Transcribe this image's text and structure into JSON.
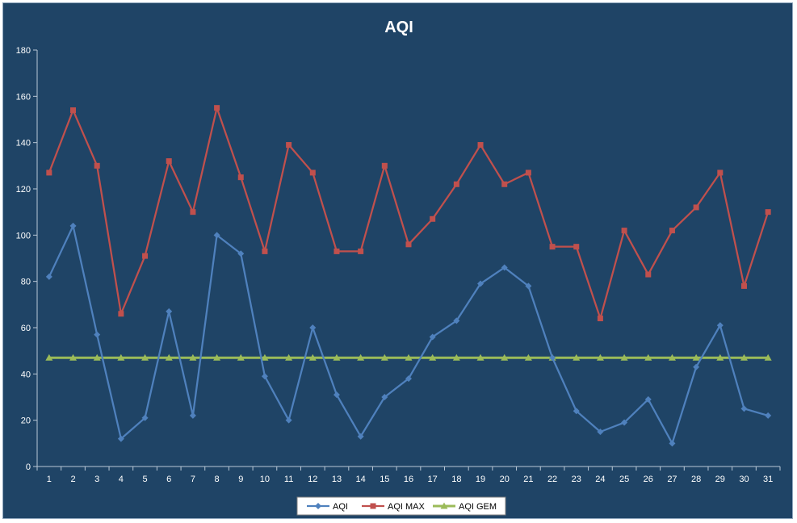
{
  "chart_data": {
    "type": "line",
    "title": "AQI",
    "xlabel": "",
    "ylabel": "",
    "ylim": [
      0,
      180
    ],
    "yticks": [
      0,
      20,
      40,
      60,
      80,
      100,
      120,
      140,
      160,
      180
    ],
    "grid": false,
    "legend_position": "bottom",
    "categories": [
      "1",
      "2",
      "3",
      "4",
      "5",
      "6",
      "7",
      "8",
      "9",
      "10",
      "11",
      "12",
      "13",
      "14",
      "15",
      "16",
      "17",
      "18",
      "19",
      "20",
      "21",
      "22",
      "23",
      "24",
      "25",
      "26",
      "27",
      "28",
      "29",
      "30",
      "31"
    ],
    "series": [
      {
        "name": "AQI",
        "color": "#4f81bd",
        "marker": "diamond",
        "values": [
          82,
          104,
          57,
          12,
          21,
          67,
          22,
          100,
          92,
          39,
          20,
          60,
          31,
          13,
          30,
          38,
          56,
          63,
          79,
          86,
          78,
          47,
          24,
          15,
          19,
          29,
          10,
          43,
          61,
          25,
          22
        ]
      },
      {
        "name": "AQI MAX",
        "color": "#c0504d",
        "marker": "square",
        "values": [
          127,
          154,
          130,
          66,
          91,
          132,
          110,
          155,
          125,
          93,
          139,
          127,
          93,
          93,
          130,
          96,
          107,
          122,
          139,
          122,
          127,
          95,
          95,
          64,
          102,
          83,
          102,
          112,
          127,
          78,
          110
        ]
      },
      {
        "name": "AQI GEM",
        "color": "#9bbb59",
        "marker": "triangle",
        "values": [
          47,
          47,
          47,
          47,
          47,
          47,
          47,
          47,
          47,
          47,
          47,
          47,
          47,
          47,
          47,
          47,
          47,
          47,
          47,
          47,
          47,
          47,
          47,
          47,
          47,
          47,
          47,
          47,
          47,
          47,
          47
        ]
      }
    ]
  },
  "colors": {
    "background": "#1f4466",
    "axis": "#b8c7d6",
    "text": "#ffffff",
    "legend_background": "#ffffff"
  }
}
